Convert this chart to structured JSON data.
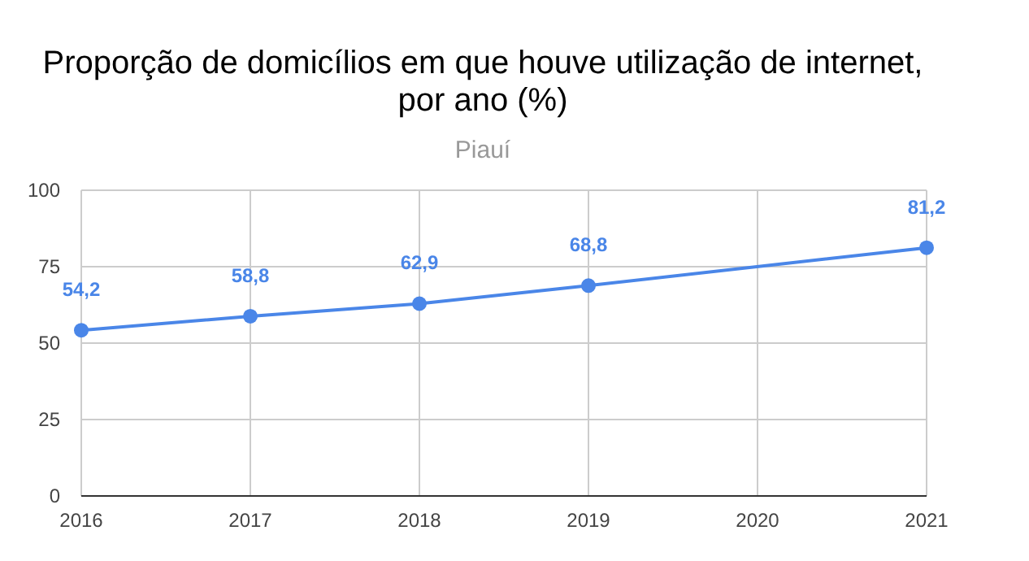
{
  "chart_data": {
    "type": "line",
    "title": "Proporção de domicílios em que houve utilização de internet, por ano (%)",
    "subtitle": "Piauí",
    "x": [
      2016,
      2017,
      2018,
      2019,
      2021
    ],
    "series": [
      {
        "color": "#4a86e8",
        "values": [
          54.2,
          58.8,
          62.9,
          68.8,
          81.2
        ],
        "value_labels": [
          "54,2",
          "58,8",
          "62,9",
          "68,8",
          "81,2"
        ]
      }
    ],
    "xlim": [
      2016,
      2021
    ],
    "xticks": [
      2016,
      2017,
      2018,
      2019,
      2020,
      2021
    ],
    "ylim": [
      0,
      100
    ],
    "yticks": [
      0,
      25,
      50,
      75,
      100
    ],
    "grid": true,
    "marker": "circle",
    "line_style": "solid"
  }
}
